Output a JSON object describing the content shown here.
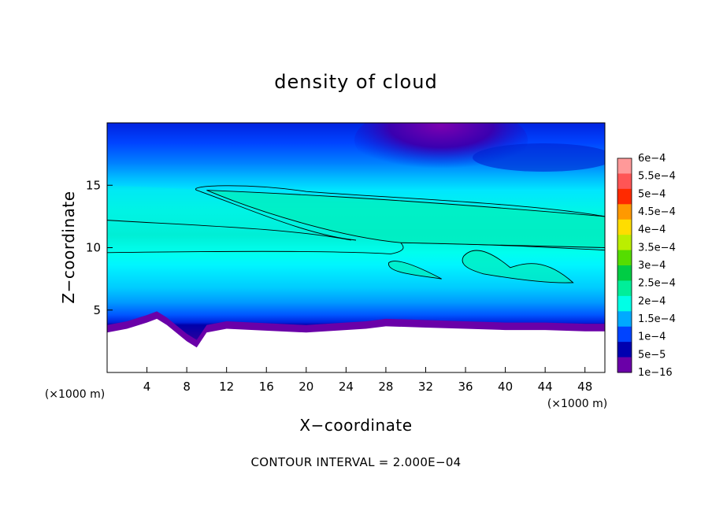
{
  "chart_data": {
    "type": "heatmap",
    "title": "density of cloud",
    "xlabel": "X−coordinate",
    "ylabel": "Z−coordinate",
    "x_unit": "(×1000 m)",
    "y_unit": "(×1000 m)",
    "xlim": [
      0,
      50
    ],
    "ylim": [
      0,
      20
    ],
    "x_ticks": [
      4,
      8,
      12,
      16,
      20,
      24,
      28,
      32,
      36,
      40,
      44,
      48
    ],
    "x_tick_labels": [
      "4",
      "8",
      "12",
      "16",
      "20",
      "24",
      "28",
      "32",
      "36",
      "40",
      "44",
      "48"
    ],
    "y_ticks": [
      5,
      10,
      15
    ],
    "y_tick_labels": [
      "5",
      "10",
      "15"
    ],
    "colorbar": {
      "labels": [
        "6e−4",
        "5.5e−4",
        "5e−4",
        "4.5e−4",
        "4e−4",
        "3.5e−4",
        "3e−4",
        "2.5e−4",
        "2e−4",
        "1.5e−4",
        "1e−4",
        "5e−5",
        "1e−16"
      ],
      "values": [
        0.0006,
        0.00055,
        0.0005,
        0.00045,
        0.0004,
        0.00035,
        0.0003,
        0.00025,
        0.0002,
        0.00015,
        0.0001,
        5e-05,
        1e-16
      ],
      "colors": [
        "#ff9999",
        "#ff5555",
        "#ff2a00",
        "#ff9900",
        "#ffdd00",
        "#bbee00",
        "#55dd00",
        "#00cc44",
        "#00ee99",
        "#00ffe6",
        "#00aaff",
        "#0044ff",
        "#0000b0",
        "#6a00a8"
      ]
    },
    "fields": {
      "cloud_band_z_km": [
        9.5,
        15.5
      ],
      "high_density_regions": [
        {
          "x": [
            10,
            30
          ],
          "z": [
            10.5,
            14.8
          ],
          "level": 0.0002
        },
        {
          "x": [
            28,
            34
          ],
          "z": [
            7.5,
            9.0
          ],
          "level": 0.0002
        },
        {
          "x": [
            35,
            48
          ],
          "z": [
            7.0,
            10.0
          ],
          "level": 0.0002
        }
      ],
      "terrain_top_z_km": {
        "x": [
          0,
          2,
          4,
          5,
          6,
          8,
          9,
          10,
          12,
          20,
          26,
          28,
          32,
          36,
          40,
          44,
          48,
          50
        ],
        "z": [
          3.2,
          3.5,
          4.0,
          4.3,
          3.8,
          2.5,
          2.0,
          3.2,
          3.5,
          3.2,
          3.5,
          3.7,
          3.6,
          3.5,
          3.4,
          3.4,
          3.3,
          3.3
        ]
      }
    },
    "footer": "CONTOUR INTERVAL = 2.000E−04",
    "grid": false,
    "legend_position": "right"
  }
}
